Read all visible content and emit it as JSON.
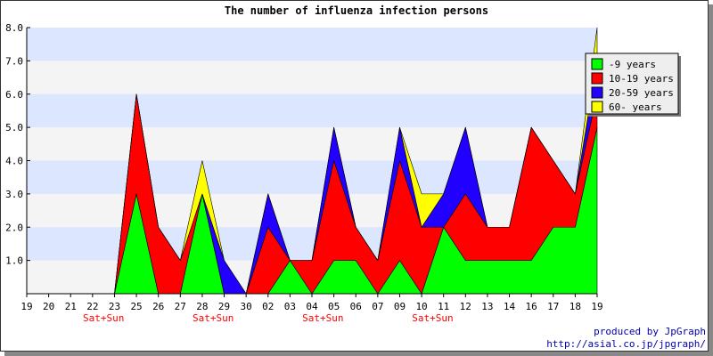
{
  "chart_data": {
    "type": "area",
    "stacked": true,
    "title": "The number of influenza infection persons",
    "categories": [
      "19",
      "20",
      "21",
      "22",
      "23",
      "25",
      "26",
      "27",
      "28",
      "29",
      "30",
      "02",
      "03",
      "04",
      "05",
      "06",
      "07",
      "09",
      "10",
      "11",
      "12",
      "13",
      "14",
      "16",
      "17",
      "18",
      "19"
    ],
    "weekend_marks": [
      {
        "index": 3,
        "label": "Sat+Sun"
      },
      {
        "index": 8,
        "label": "Sat+Sun"
      },
      {
        "index": 13,
        "label": "Sat+Sun"
      },
      {
        "index": 18,
        "label": "Sat+Sun"
      }
    ],
    "series": [
      {
        "name": "-9 years",
        "color": "#00ff00",
        "values": [
          0,
          0,
          0,
          0,
          0,
          3,
          0,
          0,
          3,
          0,
          0,
          0,
          1,
          0,
          1,
          1,
          0,
          1,
          0,
          2,
          1,
          1,
          1,
          1,
          2,
          2,
          5
        ]
      },
      {
        "name": "10-19 years",
        "color": "#ff0000",
        "values": [
          0,
          0,
          0,
          0,
          0,
          3,
          2,
          1,
          0,
          0,
          0,
          2,
          0,
          1,
          3,
          1,
          1,
          3,
          2,
          0,
          2,
          1,
          1,
          4,
          2,
          1,
          1
        ]
      },
      {
        "name": "20-59 years",
        "color": "#2200ff",
        "values": [
          0,
          0,
          0,
          0,
          0,
          0,
          0,
          0,
          0,
          1,
          0,
          1,
          0,
          0,
          1,
          0,
          0,
          1,
          0,
          1,
          2,
          0,
          0,
          0,
          0,
          0,
          1
        ]
      },
      {
        "name": "60- years",
        "color": "#ffff00",
        "values": [
          0,
          0,
          0,
          0,
          0,
          0,
          0,
          0,
          1,
          0,
          0,
          0,
          0,
          0,
          0,
          0,
          0,
          0,
          1,
          0,
          0,
          0,
          0,
          0,
          0,
          0,
          1
        ]
      }
    ],
    "y_ticks": [
      "1.0",
      "2.0",
      "3.0",
      "4.0",
      "5.0",
      "6.0",
      "7.0",
      "8.0"
    ],
    "ylim": [
      0,
      8
    ],
    "grid": "horizontal bands",
    "band_color": "#dde6ff",
    "legend_position": "top-right"
  },
  "credit": {
    "line1": "produced by JpGraph",
    "line2": "http://asial.co.jp/jpgraph/"
  }
}
